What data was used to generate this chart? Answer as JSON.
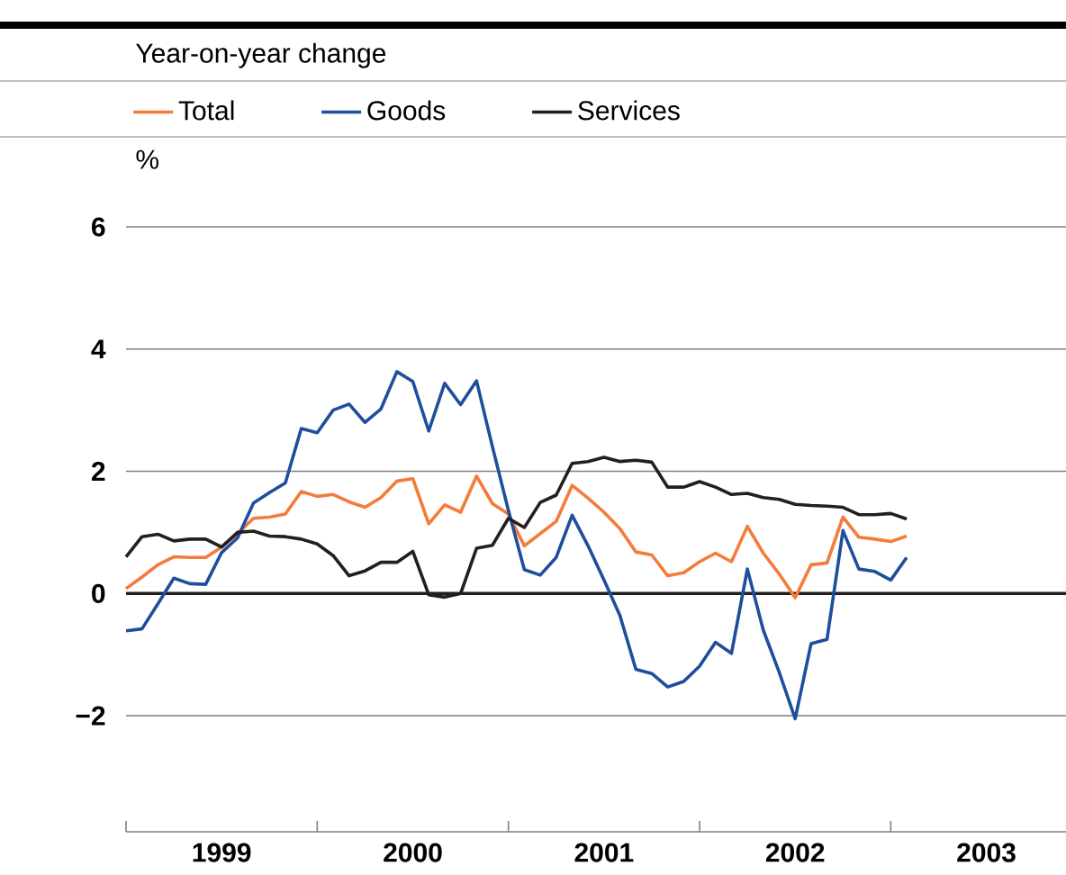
{
  "chart_data": {
    "type": "line",
    "title": "Year-on-year change",
    "ylabel": "%",
    "x": [
      "1999-01",
      "1999-02",
      "1999-03",
      "1999-04",
      "1999-05",
      "1999-06",
      "1999-07",
      "1999-08",
      "1999-09",
      "1999-10",
      "1999-11",
      "1999-12",
      "2000-01",
      "2000-02",
      "2000-03",
      "2000-04",
      "2000-05",
      "2000-06",
      "2000-07",
      "2000-08",
      "2000-09",
      "2000-10",
      "2000-11",
      "2000-12",
      "2001-01",
      "2001-02",
      "2001-03",
      "2001-04",
      "2001-05",
      "2001-06",
      "2001-07",
      "2001-08",
      "2001-09",
      "2001-10",
      "2001-11",
      "2001-12",
      "2002-01",
      "2002-02",
      "2002-03",
      "2002-04",
      "2002-05",
      "2002-06",
      "2002-07",
      "2002-08",
      "2002-09",
      "2002-10",
      "2002-11",
      "2002-12",
      "2003-01",
      "2003-02"
    ],
    "series": [
      {
        "name": "Total",
        "color": "#f47b3b",
        "values": [
          0.08,
          0.27,
          0.47,
          0.6,
          0.59,
          0.59,
          0.76,
          0.98,
          1.23,
          1.25,
          1.3,
          1.67,
          1.59,
          1.62,
          1.5,
          1.41,
          1.57,
          1.84,
          1.88,
          1.14,
          1.45,
          1.33,
          1.92,
          1.47,
          1.3,
          0.78,
          0.98,
          1.18,
          1.77,
          1.56,
          1.33,
          1.06,
          0.68,
          0.63,
          0.29,
          0.34,
          0.52,
          0.66,
          0.52,
          1.1,
          0.66,
          0.32,
          -0.07,
          0.47,
          0.5,
          1.25,
          0.92,
          0.89,
          0.85,
          0.94
        ]
      },
      {
        "name": "Goods",
        "color": "#1f4e9c",
        "values": [
          -0.61,
          -0.58,
          -0.17,
          0.25,
          0.16,
          0.15,
          0.67,
          0.91,
          1.48,
          1.65,
          1.81,
          2.7,
          2.63,
          3.0,
          3.1,
          2.8,
          3.02,
          3.63,
          3.47,
          2.66,
          3.44,
          3.09,
          3.48,
          2.4,
          1.36,
          0.39,
          0.3,
          0.59,
          1.28,
          0.78,
          0.22,
          -0.36,
          -1.24,
          -1.31,
          -1.53,
          -1.44,
          -1.19,
          -0.8,
          -0.98,
          0.4,
          -0.6,
          -1.29,
          -2.05,
          -0.82,
          -0.75,
          1.03,
          0.4,
          0.36,
          0.22,
          0.59
        ]
      },
      {
        "name": "Services",
        "color": "#231f20",
        "values": [
          0.6,
          0.93,
          0.97,
          0.86,
          0.89,
          0.89,
          0.76,
          1.0,
          1.02,
          0.94,
          0.93,
          0.89,
          0.81,
          0.62,
          0.29,
          0.37,
          0.51,
          0.51,
          0.69,
          -0.02,
          -0.06,
          0.0,
          0.74,
          0.79,
          1.23,
          1.08,
          1.49,
          1.61,
          2.13,
          2.16,
          2.23,
          2.16,
          2.18,
          2.15,
          1.74,
          1.74,
          1.83,
          1.74,
          1.62,
          1.64,
          1.57,
          1.54,
          1.46,
          1.44,
          1.43,
          1.41,
          1.29,
          1.29,
          1.31,
          1.22
        ]
      }
    ],
    "xlim": [
      "1999-01",
      "2003-12"
    ],
    "xticks": [
      {
        "value": "1999-01",
        "label": null
      },
      {
        "value": "1999-07",
        "label": "1999"
      },
      {
        "value": "2000-01",
        "label": null
      },
      {
        "value": "2000-07",
        "label": "2000"
      },
      {
        "value": "2001-01",
        "label": null
      },
      {
        "value": "2001-07",
        "label": "2001"
      },
      {
        "value": "2002-01",
        "label": null
      },
      {
        "value": "2002-07",
        "label": "2002"
      },
      {
        "value": "2003-01",
        "label": null
      },
      {
        "value": "2003-07",
        "label": "2003"
      }
    ],
    "ylim": [
      -3.9,
      6
    ],
    "yticks": [
      {
        "value": -2,
        "label": "−2"
      },
      0,
      2,
      4,
      6
    ],
    "ref_lines": [
      {
        "axis": "y",
        "value": 0,
        "color": "#231f20"
      }
    ],
    "grid": "y",
    "legend": "top",
    "marker": "none",
    "line_style": "solid"
  }
}
